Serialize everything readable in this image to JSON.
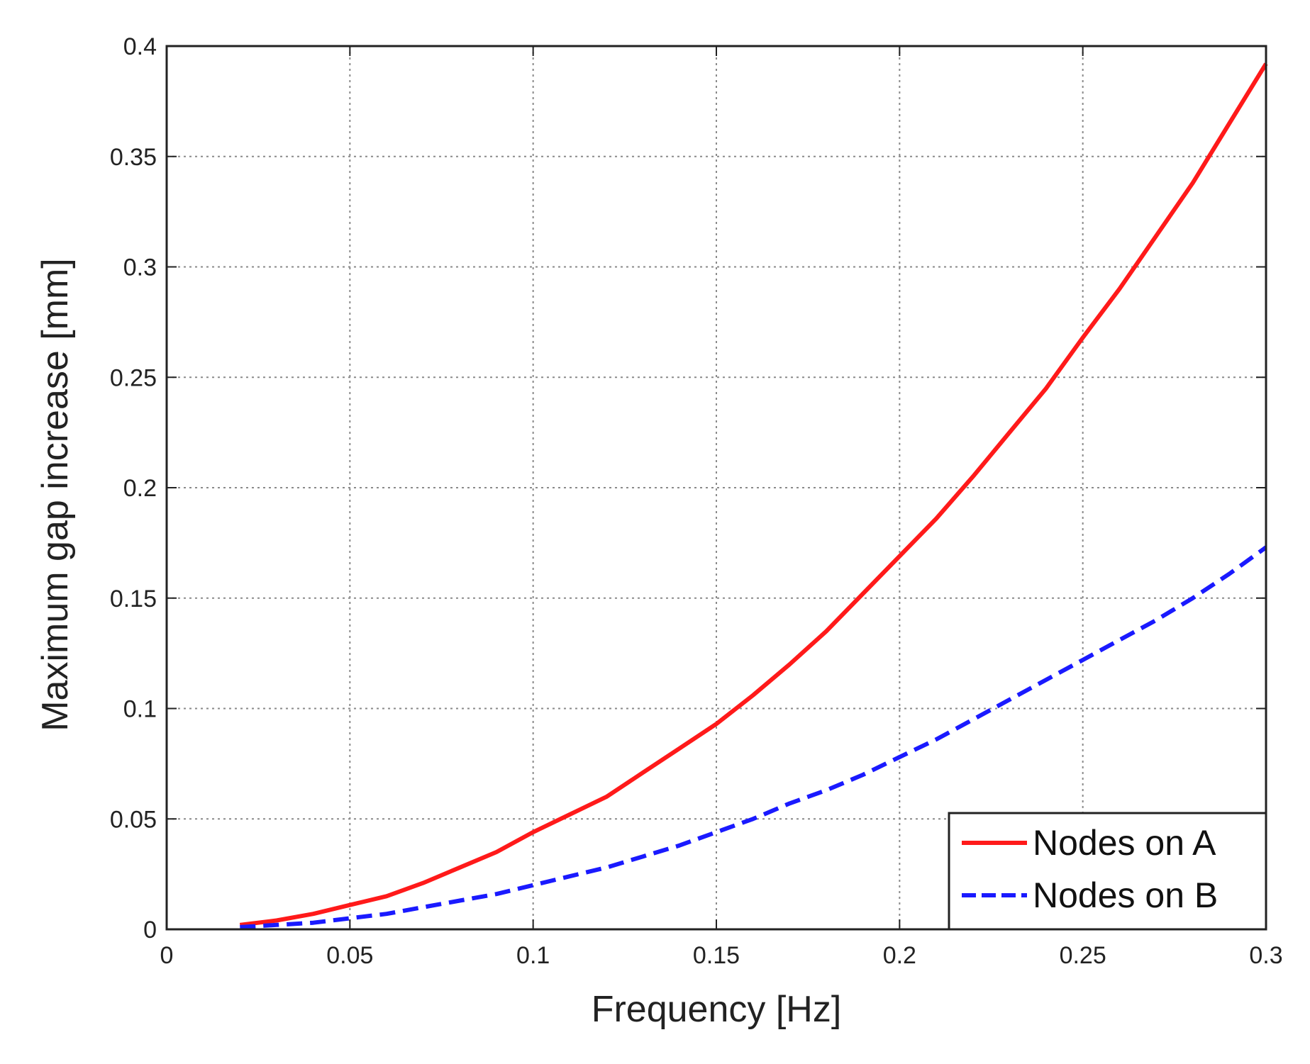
{
  "chart_data": {
    "type": "line",
    "title": "",
    "xlabel": "Frequency [Hz]",
    "ylabel": "Maximum gap increase [mm]",
    "xlim": [
      0,
      0.3
    ],
    "ylim": [
      0,
      0.4
    ],
    "xticks": [
      0,
      0.05,
      0.1,
      0.15,
      0.2,
      0.25,
      0.3
    ],
    "xtick_labels": [
      "0",
      "0.05",
      "0.1",
      "0.15",
      "0.2",
      "0.25",
      "0.3"
    ],
    "yticks": [
      0,
      0.05,
      0.1,
      0.15,
      0.2,
      0.25,
      0.3,
      0.35,
      0.4
    ],
    "ytick_labels": [
      "0",
      "0.05",
      "0.1",
      "0.15",
      "0.2",
      "0.25",
      "0.3",
      "0.35",
      "0.4"
    ],
    "grid": true,
    "legend_position": "bottom-right",
    "series": [
      {
        "name": "Nodes on A",
        "color": "#ff1a1a",
        "line_style": "solid",
        "x": [
          0.02,
          0.03,
          0.04,
          0.05,
          0.06,
          0.07,
          0.08,
          0.09,
          0.1,
          0.11,
          0.12,
          0.13,
          0.14,
          0.15,
          0.16,
          0.17,
          0.18,
          0.19,
          0.2,
          0.21,
          0.22,
          0.23,
          0.24,
          0.25,
          0.26,
          0.27,
          0.28,
          0.29,
          0.3
        ],
        "y": [
          0.002,
          0.004,
          0.007,
          0.011,
          0.015,
          0.021,
          0.028,
          0.035,
          0.044,
          0.052,
          0.06,
          0.071,
          0.082,
          0.093,
          0.106,
          0.12,
          0.135,
          0.152,
          0.169,
          0.186,
          0.205,
          0.225,
          0.245,
          0.268,
          0.29,
          0.314,
          0.338,
          0.365,
          0.392
        ]
      },
      {
        "name": "Nodes on B",
        "color": "#1a1aff",
        "line_style": "dashed",
        "x": [
          0.02,
          0.03,
          0.04,
          0.05,
          0.06,
          0.07,
          0.08,
          0.09,
          0.1,
          0.11,
          0.12,
          0.13,
          0.14,
          0.15,
          0.16,
          0.17,
          0.18,
          0.19,
          0.2,
          0.21,
          0.22,
          0.23,
          0.24,
          0.25,
          0.26,
          0.27,
          0.28,
          0.29,
          0.3
        ],
        "y": [
          0.001,
          0.002,
          0.003,
          0.005,
          0.007,
          0.01,
          0.013,
          0.016,
          0.02,
          0.024,
          0.028,
          0.033,
          0.038,
          0.044,
          0.05,
          0.057,
          0.063,
          0.07,
          0.078,
          0.086,
          0.095,
          0.104,
          0.113,
          0.122,
          0.131,
          0.14,
          0.15,
          0.161,
          0.173
        ]
      }
    ]
  }
}
